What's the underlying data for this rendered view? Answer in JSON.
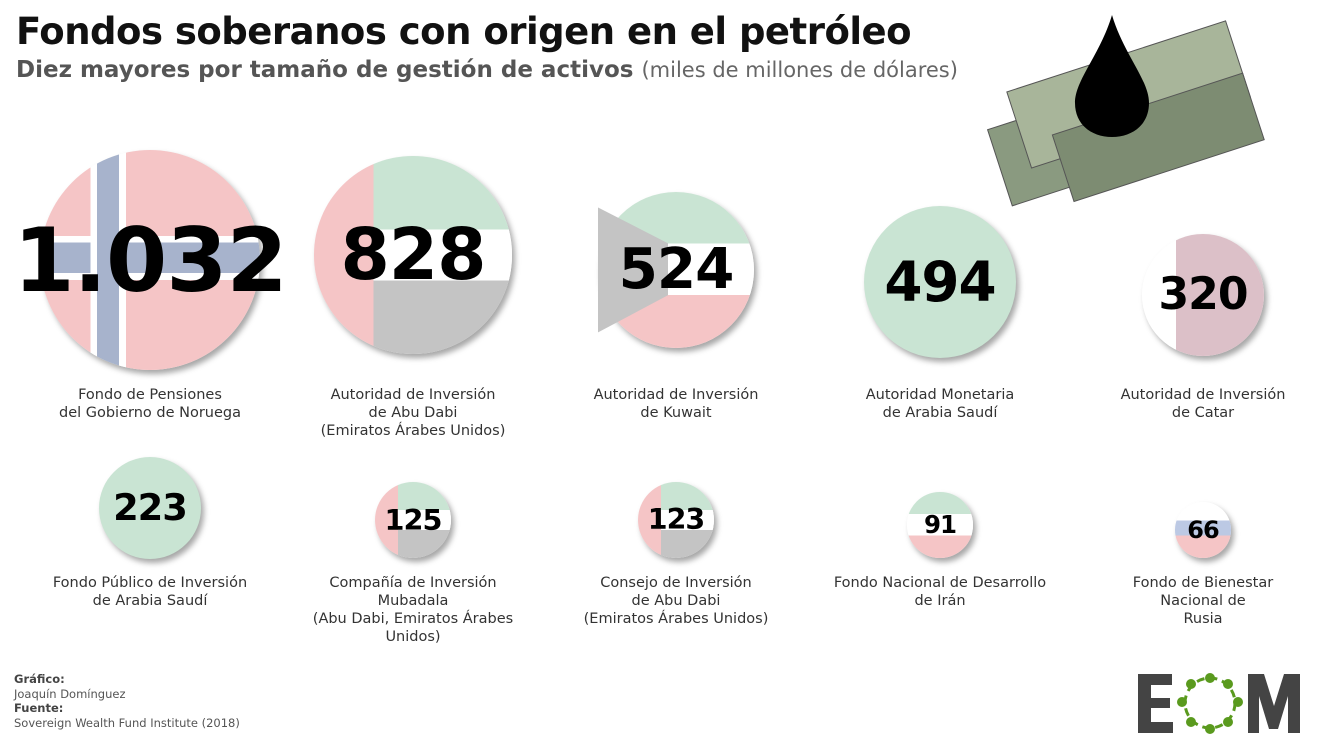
{
  "header": {
    "title": "Fondos soberanos con origen en el petróleo",
    "subtitle": "Diez mayores por tamaño de gestión de activos",
    "unit": "(miles de millones de dólares)"
  },
  "chart_data": {
    "type": "bubble",
    "title": "Fondos soberanos con origen en el petróleo",
    "subtitle": "Diez mayores por tamaño de gestión de activos (miles de millones de dólares)",
    "items": [
      {
        "label": "Fondo de Pensiones\ndel Gobierno de Noruega",
        "value": 1032,
        "display": "1.032",
        "flag": "norway"
      },
      {
        "label": "Autoridad de Inversión\nde Abu Dabi\n(Emiratos Árabes Unidos)",
        "value": 828,
        "display": "828",
        "flag": "uae"
      },
      {
        "label": "Autoridad de Inversión\nde Kuwait",
        "value": 524,
        "display": "524",
        "flag": "kuwait"
      },
      {
        "label": "Autoridad Monetaria\nde Arabia Saudí",
        "value": 494,
        "display": "494",
        "flag": "saudi"
      },
      {
        "label": "Autoridad de Inversión\nde Catar",
        "value": 320,
        "display": "320",
        "flag": "qatar"
      },
      {
        "label": "Fondo Público de Inversión\nde Arabia Saudí",
        "value": 223,
        "display": "223",
        "flag": "saudi"
      },
      {
        "label": "Compañía de Inversión\nMubadala\n(Abu Dabi, Emiratos Árabes Unidos)",
        "value": 125,
        "display": "125",
        "flag": "uae"
      },
      {
        "label": "Consejo de Inversión\nde Abu Dabi\n(Emiratos Árabes Unidos)",
        "value": 123,
        "display": "123",
        "flag": "uae"
      },
      {
        "label": "Fondo Nacional de Desarrollo\nde Irán",
        "value": 91,
        "display": "91",
        "flag": "iran"
      },
      {
        "label": "Fondo de Bienestar\nNacional de\nRusia",
        "value": 66,
        "display": "66",
        "flag": "russia"
      }
    ]
  },
  "footer": {
    "graphic_label": "Gráfico:",
    "graphic_author": "Joaquín Domínguez",
    "source_label": "Fuente:",
    "source": "Sovereign Wealth Fund Institute (2018)"
  },
  "logo": {
    "text": "EOM",
    "color_dark": "#444444",
    "color_green": "#5a9a1e"
  }
}
